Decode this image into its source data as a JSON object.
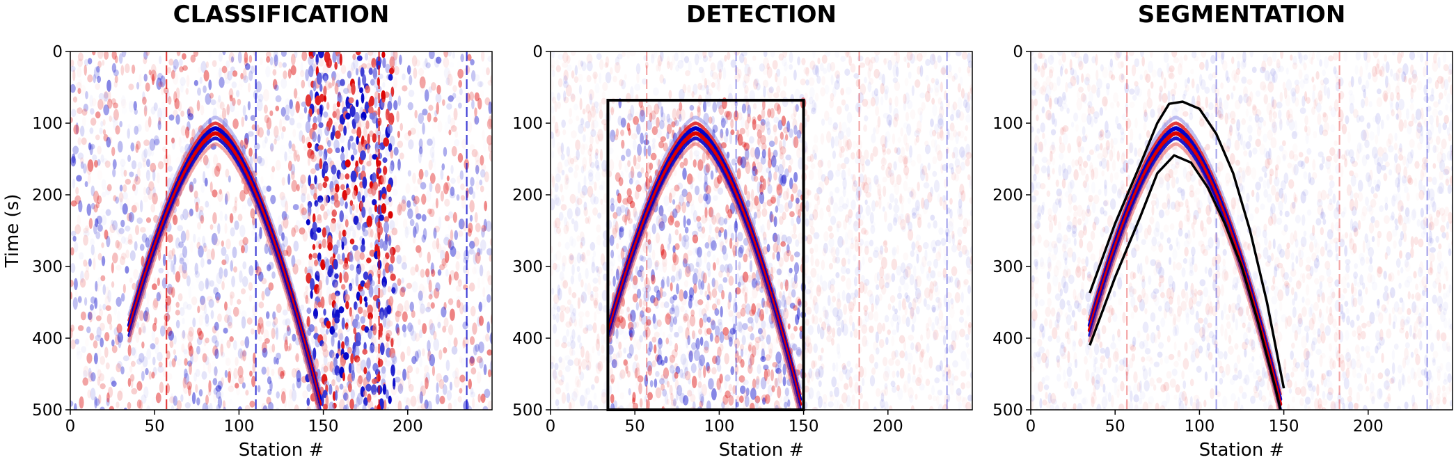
{
  "figure": {
    "panels": [
      {
        "title": "CLASSIFICATION",
        "annotation": "none",
        "noise_level": "high",
        "station_noise_band": [
          140,
          190
        ]
      },
      {
        "title": "DETECTION",
        "annotation": "bounding-box",
        "noise_level": "low",
        "station_noise_band": []
      },
      {
        "title": "SEGMENTATION",
        "annotation": "contour-mask",
        "noise_level": "low",
        "station_noise_band": []
      }
    ]
  },
  "chart_data": {
    "type": "heatmap",
    "xlabel": "Station #",
    "ylabel": "Time (s)",
    "xlim": [
      0,
      250
    ],
    "ylim": [
      500,
      0
    ],
    "xticks": [
      0,
      50,
      100,
      150,
      200
    ],
    "yticks": [
      0,
      100,
      200,
      300,
      400,
      500
    ],
    "colormap": "seismic (blue-white-red)",
    "colors": {
      "positive": "#dc0000",
      "negative": "#0000c8",
      "zero": "#ffffff",
      "annotation": "#000000"
    },
    "signal": {
      "shape": "hyperbolic arrival",
      "apex": {
        "station": 86,
        "time": 110
      },
      "left_end": {
        "station": 35,
        "time": 385
      },
      "right_end": {
        "station": 148,
        "time": 490
      }
    },
    "detection_box": {
      "x": [
        34,
        150
      ],
      "y": [
        68,
        500
      ]
    },
    "segmentation_contour": {
      "upper": [
        [
          35,
          337
        ],
        [
          50,
          240
        ],
        [
          65,
          157
        ],
        [
          75,
          100
        ],
        [
          82,
          73
        ],
        [
          90,
          70
        ],
        [
          100,
          80
        ],
        [
          110,
          115
        ],
        [
          120,
          170
        ],
        [
          130,
          250
        ],
        [
          140,
          350
        ],
        [
          150,
          470
        ]
      ],
      "lower": [
        [
          35,
          410
        ],
        [
          50,
          315
        ],
        [
          65,
          230
        ],
        [
          75,
          170
        ],
        [
          85,
          145
        ],
        [
          95,
          155
        ],
        [
          105,
          190
        ],
        [
          115,
          240
        ],
        [
          125,
          300
        ],
        [
          135,
          380
        ],
        [
          145,
          470
        ],
        [
          148,
          500
        ]
      ]
    },
    "bad_traces": [
      57,
      110,
      183,
      235
    ]
  }
}
